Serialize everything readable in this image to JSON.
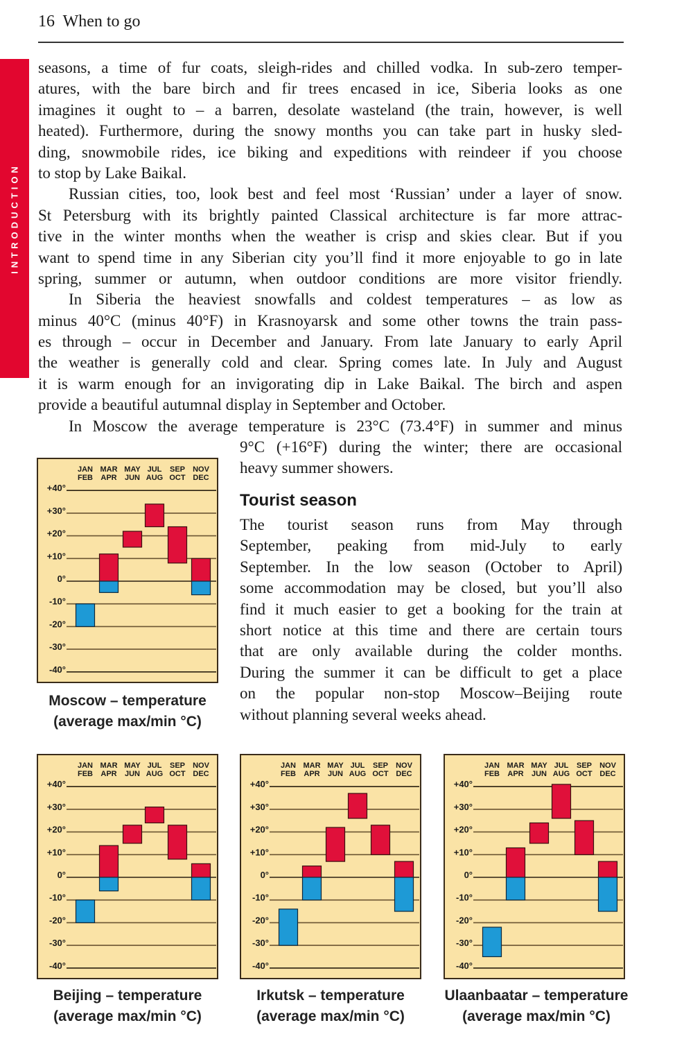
{
  "header": {
    "page_number": "16",
    "title": "When to go"
  },
  "side_tab": {
    "label": "INTRODUCTION",
    "color": "#e2062f"
  },
  "body": {
    "paragraphs": [
      {
        "lines": [
          "seasons, a time of fur coats, sleigh-rides and chilled vodka. In sub-zero temper-",
          "atures, with the bare birch and fir trees encased in ice, Siberia looks as one",
          "imagines it ought to – a barren, desolate wasteland (the train, however, is well",
          "heated). Furthermore, during the snowy months you can take part in husky sled-",
          "ding, snowmobile rides, ice biking and expeditions with reindeer if you choose",
          "to stop by Lake Baikal."
        ]
      },
      {
        "lines": [
          "Russian cities, too, look best and feel most ‘Russian’ under a layer of snow.",
          "St Petersburg with its brightly painted Classical architecture is far more attrac-",
          "tive in the winter months when the weather is crisp and skies clear. But if you",
          "want to spend time in any Siberian city you’ll find it more enjoyable to go in late",
          "spring, summer or autumn, when outdoor conditions are more visitor friendly."
        ]
      },
      {
        "lines": [
          "In Siberia the heaviest snowfalls and coldest temperatures – as low as",
          "minus 40°C (minus 40°F) in Krasnoyarsk and some other towns the train pass-",
          "es through – occur in December and January. From late January to early April",
          "the weather is generally cold and clear. Spring comes late. In July and August",
          "it is warm enough for an invigorating dip in Lake Baikal. The birch and aspen",
          "provide a beautiful autumnal display in September and October."
        ]
      },
      {
        "lines": [
          "In Moscow the average temperature is 23°C (73.4°F) in summer and minus"
        ]
      }
    ],
    "continuation_lines": [
      "9°C (+16°F) during the winter; there are occasional",
      "heavy summer showers."
    ],
    "tourist_heading": "Tourist season",
    "tourist_lines": [
      "The tourist season runs from May through",
      "September, peaking from mid-July to early",
      "September. In the low season (October to April)",
      "some accommodation may be closed, but you’ll also",
      "find it much easier to get a booking for the train at",
      "short notice at this time and there are certain tours",
      "that are only available during the colder months.",
      "During the summer it can be difficult to get a place",
      "on the popular non-stop Moscow–Beijing route",
      "without planning several weeks ahead."
    ]
  },
  "chart_data": [
    {
      "type": "bar",
      "title": "Moscow – temperature",
      "subtitle": "(average max/min °C)",
      "categories": [
        [
          "JAN",
          "FEB"
        ],
        [
          "MAR",
          "APR"
        ],
        [
          "MAY",
          "JUN"
        ],
        [
          "JUL",
          "AUG"
        ],
        [
          "SEP",
          "OCT"
        ],
        [
          "NOV",
          "DEC"
        ]
      ],
      "max": [
        -10,
        12,
        22,
        34,
        24,
        10
      ],
      "min": [
        -20,
        -5,
        15,
        24,
        8,
        -6
      ],
      "yticks": [
        "+40°",
        "+30°",
        "+20°",
        "+10°",
        "0°",
        "-10°",
        "-20°",
        "-30°",
        "-40°"
      ],
      "ylim": [
        -40,
        40
      ],
      "colors": {
        "above_zero": "#e0103a",
        "below_zero": "#1e9ad6",
        "background": "#fae3a6"
      }
    },
    {
      "type": "bar",
      "title": "Beijing – temperature",
      "subtitle": "(average max/min °C)",
      "categories": [
        [
          "JAN",
          "FEB"
        ],
        [
          "MAR",
          "APR"
        ],
        [
          "MAY",
          "JUN"
        ],
        [
          "JUL",
          "AUG"
        ],
        [
          "SEP",
          "OCT"
        ],
        [
          "NOV",
          "DEC"
        ]
      ],
      "max": [
        -10,
        14,
        23,
        31,
        23,
        6
      ],
      "min": [
        -20,
        -6,
        15,
        24,
        8,
        -10
      ],
      "yticks": [
        "+40°",
        "+30°",
        "+20°",
        "+10°",
        "0°",
        "-10°",
        "-20°",
        "-30°",
        "-40°"
      ],
      "ylim": [
        -40,
        40
      ],
      "colors": {
        "above_zero": "#e0103a",
        "below_zero": "#1e9ad6",
        "background": "#fae3a6"
      }
    },
    {
      "type": "bar",
      "title": "Irkutsk – temperature",
      "subtitle": "(average max/min °C)",
      "categories": [
        [
          "JAN",
          "FEB"
        ],
        [
          "MAR",
          "APR"
        ],
        [
          "MAY",
          "JUN"
        ],
        [
          "JUL",
          "AUG"
        ],
        [
          "SEP",
          "OCT"
        ],
        [
          "NOV",
          "DEC"
        ]
      ],
      "max": [
        -14,
        5,
        22,
        37,
        23,
        7
      ],
      "min": [
        -30,
        -10,
        7,
        26,
        10,
        -15
      ],
      "yticks": [
        "+40°",
        "+30°",
        "+20°",
        "+10°",
        "0°",
        "-10°",
        "-20°",
        "-30°",
        "-40°"
      ],
      "ylim": [
        -40,
        40
      ],
      "colors": {
        "above_zero": "#e0103a",
        "below_zero": "#1e9ad6",
        "background": "#fae3a6"
      }
    },
    {
      "type": "bar",
      "title": "Ulaanbaatar – temperature",
      "subtitle": "(average max/min °C)",
      "categories": [
        [
          "JAN",
          "FEB"
        ],
        [
          "MAR",
          "APR"
        ],
        [
          "MAY",
          "JUN"
        ],
        [
          "JUL",
          "AUG"
        ],
        [
          "SEP",
          "OCT"
        ],
        [
          "NOV",
          "DEC"
        ]
      ],
      "max": [
        -22,
        13,
        24,
        41,
        25,
        7
      ],
      "min": [
        -35,
        -10,
        15,
        26,
        10,
        -15
      ],
      "yticks": [
        "+40°",
        "+30°",
        "+20°",
        "+10°",
        "0°",
        "-10°",
        "-20°",
        "-30°",
        "-40°"
      ],
      "ylim": [
        -40,
        40
      ],
      "colors": {
        "above_zero": "#e0103a",
        "below_zero": "#1e9ad6",
        "background": "#fae3a6"
      }
    }
  ]
}
